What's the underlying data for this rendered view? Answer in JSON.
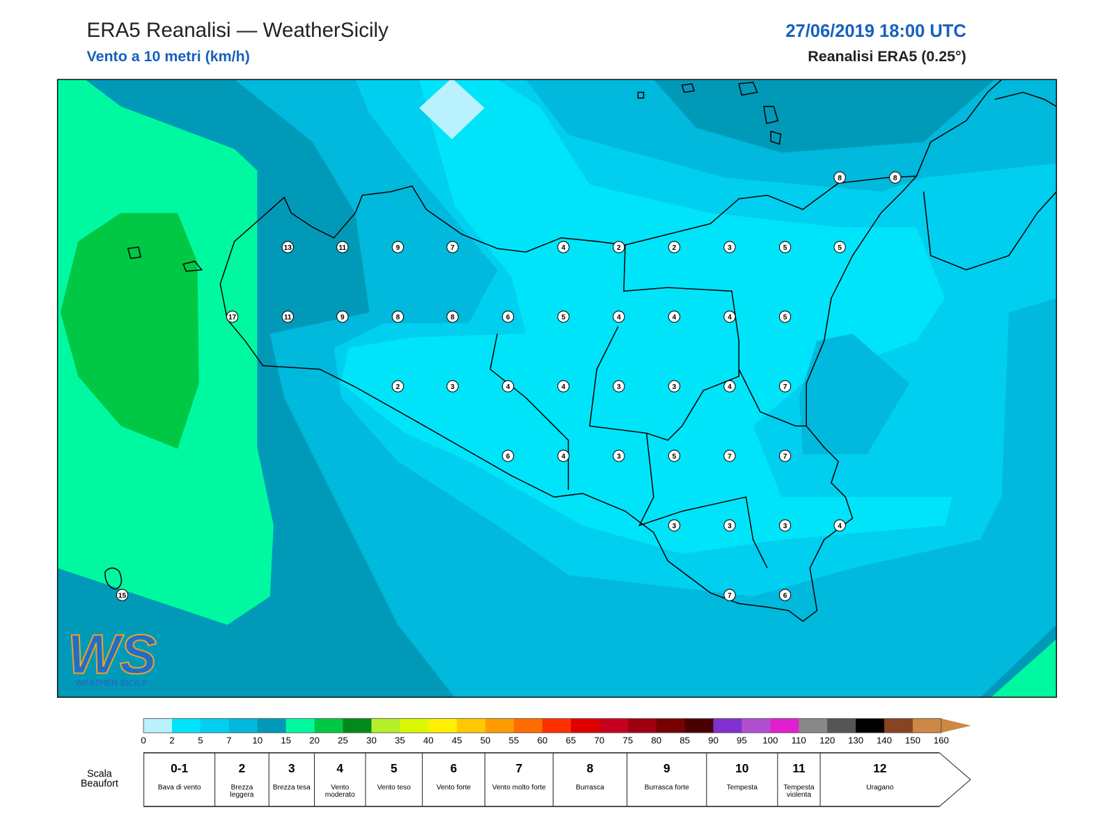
{
  "header": {
    "title": "ERA5 Reanalisi — WeatherSicily",
    "subtitle": "Vento a 10 metri (km/h)",
    "date": "27/06/2019 18:00 UTC",
    "source": "Reanalisi ERA5 (0.25°)"
  },
  "stations": [
    8,
    8,
    13,
    11,
    9,
    7,
    4,
    2,
    2,
    3,
    5,
    5,
    17,
    11,
    9,
    8,
    8,
    6,
    5,
    4,
    4,
    4,
    5,
    2,
    3,
    4,
    4,
    3,
    3,
    4,
    7,
    6,
    4,
    3,
    5,
    7,
    7,
    3,
    3,
    3,
    4,
    7,
    6,
    15
  ],
  "logo": {
    "mark": "WS",
    "name": "WEATHER SICILY"
  },
  "colorbar": {
    "ticks": [
      0,
      2,
      5,
      7,
      10,
      15,
      20,
      25,
      30,
      35,
      40,
      45,
      50,
      55,
      60,
      65,
      70,
      75,
      80,
      85,
      90,
      95,
      100,
      110,
      120,
      130,
      140,
      150,
      160
    ],
    "colors": [
      "#b9f2fd",
      "#00e4fa",
      "#00cfef",
      "#00b9dc",
      "#009ab8",
      "#00f9a0",
      "#00c844",
      "#008a1c",
      "#b4f02a",
      "#dcf800",
      "#fff000",
      "#ffc800",
      "#ff9c00",
      "#ff6c00",
      "#ff3000",
      "#e00000",
      "#c80020",
      "#a00010",
      "#780000",
      "#4a0000",
      "#8030d0",
      "#b050d0",
      "#e020d0",
      "#888888",
      "#555555",
      "#000000",
      "#884422",
      "#cc8844"
    ]
  },
  "beaufort": {
    "label": "Scala Beaufort",
    "items": [
      {
        "grade": "0-1",
        "desc": "Bava di vento"
      },
      {
        "grade": 2,
        "desc": "Brezza leggera"
      },
      {
        "grade": 3,
        "desc": "Brezza tesa"
      },
      {
        "grade": 4,
        "desc": "Vento moderato"
      },
      {
        "grade": 5,
        "desc": "Vento teso"
      },
      {
        "grade": 6,
        "desc": "Vento forte"
      },
      {
        "grade": 7,
        "desc": "Vento molto forte"
      },
      {
        "grade": 8,
        "desc": "Burrasca"
      },
      {
        "grade": 9,
        "desc": "Burrasca forte"
      },
      {
        "grade": 10,
        "desc": "Tempesta"
      },
      {
        "grade": 11,
        "desc": "Tempesta violenta"
      },
      {
        "grade": 12,
        "desc": "Uragano"
      }
    ]
  }
}
